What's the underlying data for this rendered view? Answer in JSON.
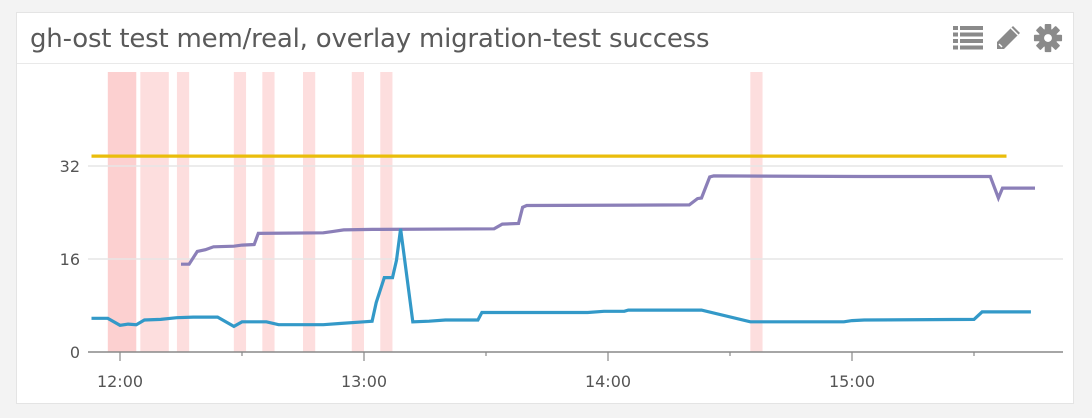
{
  "panel": {
    "title": "gh-ost test mem/real, overlay migration-test success",
    "tools": [
      {
        "icon": "list-icon",
        "label": "Show legend"
      },
      {
        "icon": "pencil-icon",
        "label": "Edit"
      },
      {
        "icon": "gear-icon",
        "label": "Settings"
      }
    ]
  },
  "colors": {
    "series_yellow": "#eabd0b",
    "series_purple": "#8b7fb8",
    "series_blue": "#3399c8",
    "event_band": "#fdd8d8",
    "event_band_dark": "#fbc8c8",
    "grid": "#e6e6e6",
    "axis": "#888888"
  },
  "chart_data": {
    "type": "line",
    "title": "gh-ost test mem/real, overlay migration-test success",
    "xlabel": "",
    "ylabel": "",
    "ylim": [
      0,
      38
    ],
    "x_ticks": [
      "12:00",
      "13:00",
      "14:00",
      "15:00"
    ],
    "y_ticks": [
      0,
      16,
      32
    ],
    "grid": true,
    "legend": "none",
    "x_unit": "minutes since 12:00",
    "series": [
      {
        "name": "yellow (limit)",
        "color": "#eabd0b",
        "points": [
          [
            -7,
            33.7
          ],
          [
            218,
            33.7
          ]
        ]
      },
      {
        "name": "purple",
        "color": "#8b7fb8",
        "points": [
          [
            15,
            15.1
          ],
          [
            17,
            15.1
          ],
          [
            19,
            17.3
          ],
          [
            21,
            17.6
          ],
          [
            23,
            18.1
          ],
          [
            28,
            18.2
          ],
          [
            30,
            18.4
          ],
          [
            33,
            18.5
          ],
          [
            34,
            20.4
          ],
          [
            50,
            20.5
          ],
          [
            52,
            20.7
          ],
          [
            55,
            21.0
          ],
          [
            62,
            21.1
          ],
          [
            92,
            21.2
          ],
          [
            94,
            22.0
          ],
          [
            98,
            22.1
          ],
          [
            99,
            24.9
          ],
          [
            100,
            25.2
          ],
          [
            140,
            25.3
          ],
          [
            142,
            26.4
          ],
          [
            143,
            26.5
          ],
          [
            145,
            30.1
          ],
          [
            146,
            30.3
          ],
          [
            183,
            30.2
          ],
          [
            214,
            30.2
          ],
          [
            216,
            26.5
          ],
          [
            217,
            28.2
          ],
          [
            225,
            28.2
          ]
        ]
      },
      {
        "name": "blue",
        "color": "#3399c8",
        "points": [
          [
            -7,
            5.8
          ],
          [
            -3,
            5.8
          ],
          [
            0,
            4.6
          ],
          [
            2,
            4.8
          ],
          [
            4,
            4.7
          ],
          [
            6,
            5.5
          ],
          [
            10,
            5.6
          ],
          [
            14,
            5.9
          ],
          [
            18,
            6.0
          ],
          [
            24,
            6.0
          ],
          [
            28,
            4.4
          ],
          [
            30,
            5.2
          ],
          [
            36,
            5.2
          ],
          [
            39,
            4.7
          ],
          [
            50,
            4.7
          ],
          [
            54,
            4.9
          ],
          [
            60,
            5.2
          ],
          [
            62,
            5.3
          ],
          [
            63,
            8.5
          ],
          [
            65,
            12.8
          ],
          [
            67,
            12.8
          ],
          [
            68,
            15.8
          ],
          [
            69,
            21.2
          ],
          [
            72,
            5.2
          ],
          [
            76,
            5.3
          ],
          [
            80,
            5.5
          ],
          [
            88,
            5.5
          ],
          [
            89,
            6.8
          ],
          [
            115,
            6.8
          ],
          [
            119,
            7.0
          ],
          [
            124,
            7.0
          ],
          [
            125,
            7.2
          ],
          [
            143,
            7.2
          ],
          [
            155,
            5.2
          ],
          [
            178,
            5.2
          ],
          [
            180,
            5.4
          ],
          [
            183,
            5.5
          ],
          [
            210,
            5.6
          ],
          [
            212,
            6.9
          ],
          [
            224,
            6.9
          ]
        ]
      }
    ],
    "event_bands_minutes": [
      [
        -3,
        4
      ],
      [
        5,
        12
      ],
      [
        14,
        17
      ],
      [
        28,
        31
      ],
      [
        35,
        38
      ],
      [
        45,
        48
      ],
      [
        57,
        60
      ],
      [
        64,
        67
      ],
      [
        155,
        158
      ]
    ]
  },
  "axes": {
    "y_labels": [
      "0",
      "16",
      "32"
    ],
    "x_labels": [
      "12:00",
      "13:00",
      "14:00",
      "15:00"
    ]
  }
}
